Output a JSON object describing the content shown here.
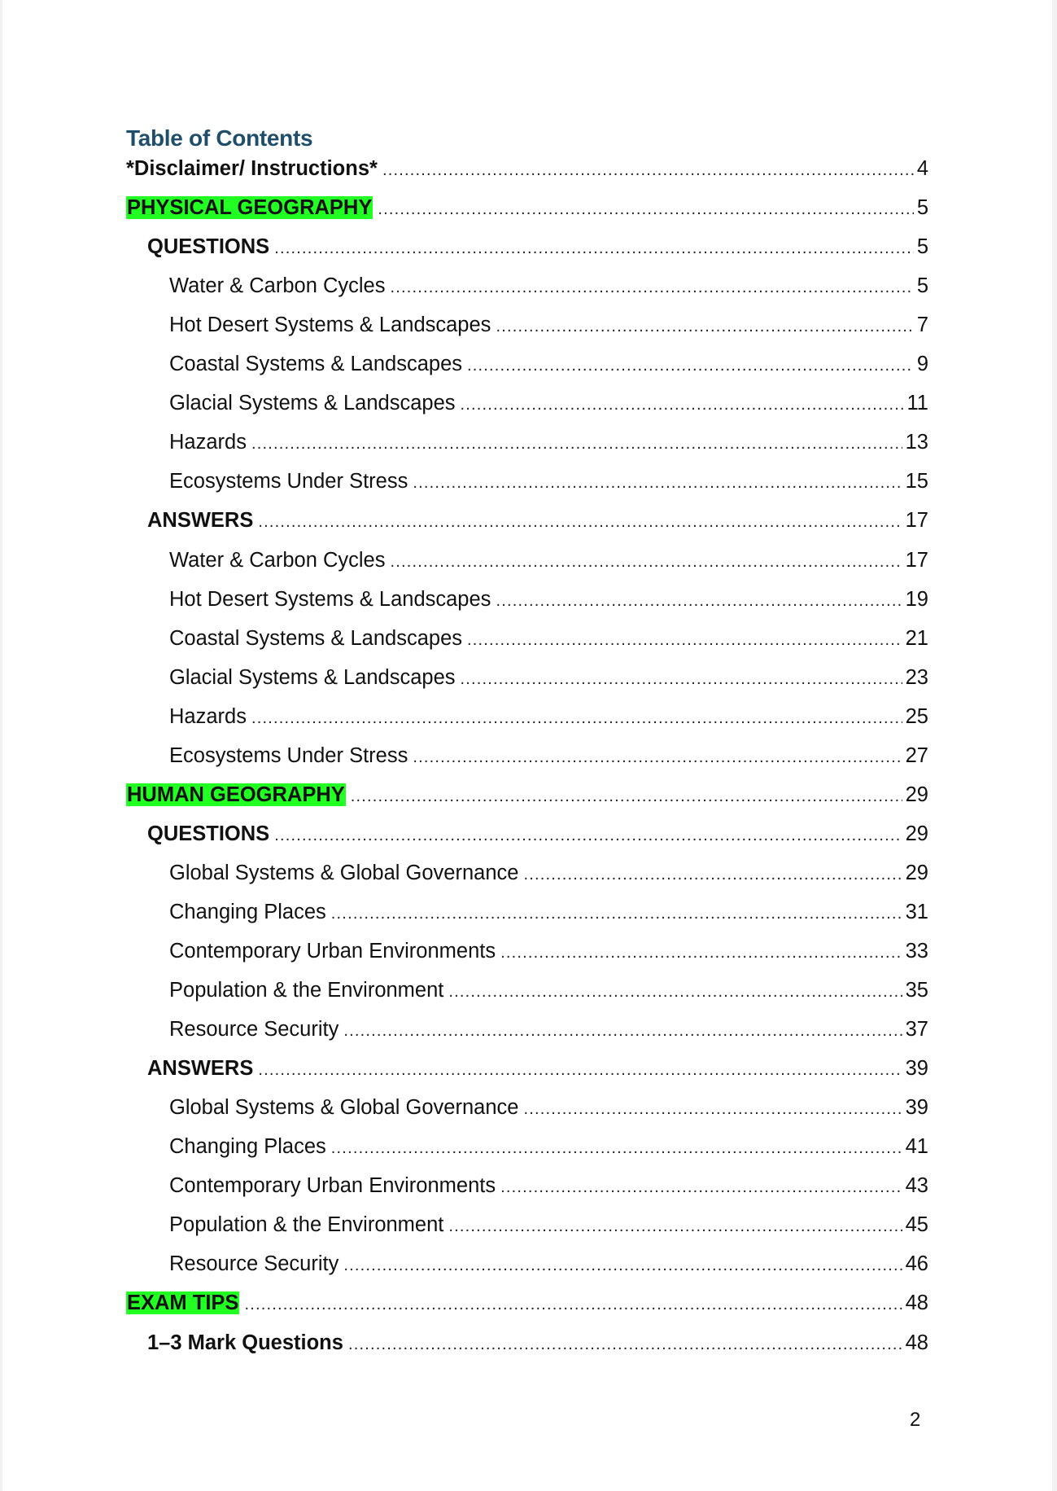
{
  "title": "Table of Contents",
  "highlight_color": "#22ff22",
  "title_color": "#1f4e6b",
  "entries": [
    {
      "label": "*Disclaimer/ Instructions*",
      "page": "4",
      "level": 1,
      "highlight": false
    },
    {
      "label": "PHYSICAL GEOGRAPHY",
      "page": "5",
      "level": 1,
      "highlight": true
    },
    {
      "label": "QUESTIONS",
      "page": "5",
      "level": 2,
      "highlight": false
    },
    {
      "label": "Water & Carbon Cycles",
      "page": "5",
      "level": 3,
      "highlight": false
    },
    {
      "label": "Hot Desert Systems & Landscapes",
      "page": "7",
      "level": 3,
      "highlight": false
    },
    {
      "label": "Coastal Systems & Landscapes",
      "page": "9",
      "level": 3,
      "highlight": false
    },
    {
      "label": "Glacial Systems & Landscapes",
      "page": "11",
      "level": 3,
      "highlight": false
    },
    {
      "label": "Hazards",
      "page": "13",
      "level": 3,
      "highlight": false
    },
    {
      "label": "Ecosystems Under Stress",
      "page": "15",
      "level": 3,
      "highlight": false
    },
    {
      "label": "ANSWERS",
      "page": "17",
      "level": 2,
      "highlight": false
    },
    {
      "label": "Water & Carbon Cycles",
      "page": "17",
      "level": 3,
      "highlight": false
    },
    {
      "label": "Hot Desert Systems & Landscapes",
      "page": "19",
      "level": 3,
      "highlight": false
    },
    {
      "label": "Coastal Systems & Landscapes",
      "page": "21",
      "level": 3,
      "highlight": false
    },
    {
      "label": "Glacial Systems & Landscapes",
      "page": "23",
      "level": 3,
      "highlight": false
    },
    {
      "label": "Hazards",
      "page": "25",
      "level": 3,
      "highlight": false
    },
    {
      "label": "Ecosystems Under Stress",
      "page": "27",
      "level": 3,
      "highlight": false
    },
    {
      "label": "HUMAN GEOGRAPHY",
      "page": "29",
      "level": 1,
      "highlight": true
    },
    {
      "label": "QUESTIONS",
      "page": "29",
      "level": 2,
      "highlight": false
    },
    {
      "label": "Global Systems & Global Governance",
      "page": "29",
      "level": 3,
      "highlight": false
    },
    {
      "label": "Changing Places",
      "page": "31",
      "level": 3,
      "highlight": false
    },
    {
      "label": "Contemporary Urban Environments",
      "page": "33",
      "level": 3,
      "highlight": false
    },
    {
      "label": "Population & the Environment",
      "page": "35",
      "level": 3,
      "highlight": false
    },
    {
      "label": "Resource Security",
      "page": "37",
      "level": 3,
      "highlight": false
    },
    {
      "label": "ANSWERS",
      "page": "39",
      "level": 2,
      "highlight": false
    },
    {
      "label": "Global Systems & Global Governance",
      "page": "39",
      "level": 3,
      "highlight": false
    },
    {
      "label": "Changing Places",
      "page": "41",
      "level": 3,
      "highlight": false
    },
    {
      "label": "Contemporary Urban Environments",
      "page": "43",
      "level": 3,
      "highlight": false
    },
    {
      "label": "Population & the Environment",
      "page": "45",
      "level": 3,
      "highlight": false
    },
    {
      "label": "Resource Security",
      "page": "46",
      "level": 3,
      "highlight": false
    },
    {
      "label": "EXAM TIPS",
      "page": "48",
      "level": 1,
      "highlight": true
    },
    {
      "label": "1–3 Mark Questions",
      "page": "48",
      "level": 2,
      "highlight": false
    }
  ],
  "page_number": "2"
}
